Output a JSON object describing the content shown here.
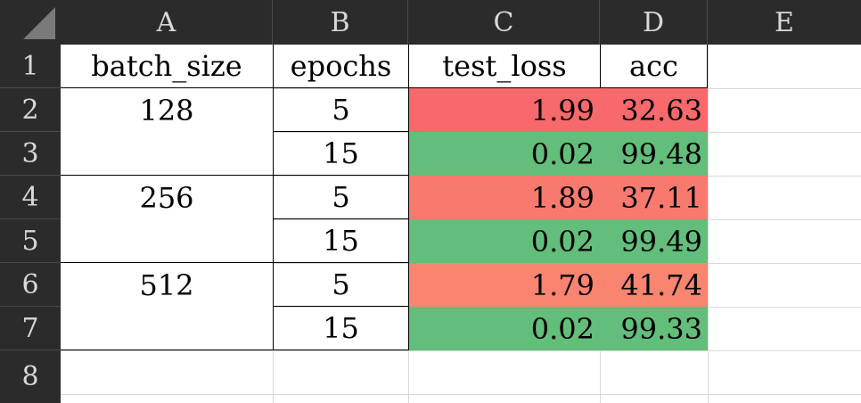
{
  "columns": [
    "A",
    "B",
    "C",
    "D",
    "E"
  ],
  "rows": [
    "1",
    "2",
    "3",
    "4",
    "5",
    "6",
    "7",
    "8"
  ],
  "headers": {
    "batch_size": "batch_size",
    "epochs": "epochs",
    "test_loss": "test_loss",
    "acc": "acc"
  },
  "groups": [
    {
      "batch_size": "128",
      "runs": [
        {
          "epochs": "5",
          "test_loss": "1.99",
          "acc": "32.63"
        },
        {
          "epochs": "15",
          "test_loss": "0.02",
          "acc": "99.48"
        }
      ]
    },
    {
      "batch_size": "256",
      "runs": [
        {
          "epochs": "5",
          "test_loss": "1.89",
          "acc": "37.11"
        },
        {
          "epochs": "15",
          "test_loss": "0.02",
          "acc": "99.49"
        }
      ]
    },
    {
      "batch_size": "512",
      "runs": [
        {
          "epochs": "5",
          "test_loss": "1.79",
          "acc": "41.74"
        },
        {
          "epochs": "15",
          "test_loss": "0.02",
          "acc": "99.33"
        }
      ]
    }
  ],
  "colors": {
    "high_loss_1": "#f8696b",
    "high_loss_2": "#f87a6f",
    "high_loss_3": "#f98571",
    "low_loss": "#63be7b",
    "header_bg": "#2b2b2b",
    "header_text": "#d8d8d8"
  }
}
